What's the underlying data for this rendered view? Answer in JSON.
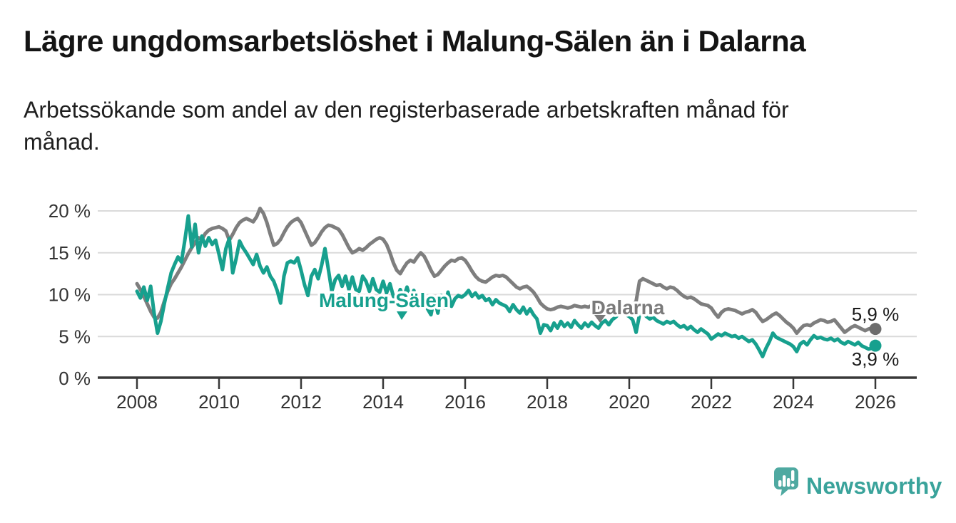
{
  "header": {
    "title": "Lägre ungdomsarbetslöshet i Malung-Sälen än i Dalarna",
    "subtitle_lines": [
      "Arbetssökande som andel av den registerbaserade arbetskraften månad för",
      "månad."
    ]
  },
  "chart_data": {
    "type": "line",
    "title": "Lägre ungdomsarbetslöshet i Malung-Sälen än i Dalarna",
    "subtitle": "Arbetssökande som andel av den registerbaserade arbetskraften månad för månad.",
    "x_unit": "month",
    "x_start": "2008-01",
    "x_end": "2026-01",
    "x_interval_months": 1,
    "x_tick_labels": [
      "2008",
      "2010",
      "2012",
      "2014",
      "2016",
      "2018",
      "2020",
      "2022",
      "2024",
      "2026"
    ],
    "y_ticks": [
      {
        "value": 0,
        "label": "0 %"
      },
      {
        "value": 5,
        "label": "5 %"
      },
      {
        "value": 10,
        "label": "10 %"
      },
      {
        "value": 15,
        "label": "15 %"
      },
      {
        "value": 20,
        "label": "20 %"
      }
    ],
    "ylim": [
      0,
      20.5
    ],
    "grid": true,
    "legend": "inline-labels",
    "colors": {
      "grid": "#dadada",
      "axis": "#383838",
      "tick_text": "#333333",
      "end_label_text": "#1a1a1a"
    },
    "series": [
      {
        "name": "Dalarna",
        "color": "#7e7e7e",
        "label_color": "#7a7a7a",
        "dot_color": "#6c6c6c",
        "end_label": "5,9 %",
        "end_value": 5.9,
        "values": [
          11.3,
          10.6,
          9.8,
          8.9,
          8.0,
          7.3,
          7.2,
          7.9,
          9.2,
          10.4,
          11.3,
          11.9,
          12.6,
          13.3,
          14.1,
          14.9,
          15.6,
          16.2,
          16.8,
          16.6,
          17.3,
          17.7,
          17.9,
          18.0,
          18.1,
          17.9,
          17.6,
          16.5,
          17.2,
          18.0,
          18.6,
          18.9,
          19.1,
          18.9,
          18.7,
          19.3,
          20.3,
          19.7,
          18.6,
          17.2,
          15.9,
          16.1,
          16.6,
          17.4,
          18.1,
          18.6,
          18.9,
          19.1,
          18.6,
          17.7,
          16.8,
          15.9,
          16.2,
          16.8,
          17.5,
          18.0,
          18.3,
          18.2,
          18.0,
          17.8,
          17.2,
          16.4,
          15.6,
          15.0,
          15.2,
          15.5,
          15.3,
          15.6,
          16.0,
          16.3,
          16.6,
          16.8,
          16.6,
          16.0,
          15.0,
          13.8,
          12.9,
          12.5,
          13.2,
          13.8,
          14.1,
          13.9,
          14.5,
          15.0,
          14.6,
          13.8,
          12.9,
          12.2,
          12.4,
          12.9,
          13.4,
          13.8,
          14.1,
          14.0,
          14.3,
          14.4,
          14.1,
          13.5,
          12.8,
          12.2,
          11.8,
          11.6,
          11.5,
          11.8,
          12.1,
          12.3,
          12.2,
          12.3,
          12.1,
          11.7,
          11.3,
          10.9,
          10.7,
          10.9,
          11.0,
          10.7,
          10.3,
          9.7,
          9.0,
          8.6,
          8.3,
          8.2,
          8.3,
          8.5,
          8.6,
          8.5,
          8.4,
          8.5,
          8.7,
          8.6,
          8.5,
          8.6,
          8.5,
          8.7,
          8.6,
          8.4,
          8.2,
          8.3,
          8.5,
          8.6,
          8.5,
          8.7,
          8.8,
          8.7,
          8.6,
          8.7,
          9.2,
          11.6,
          11.9,
          11.7,
          11.5,
          11.3,
          11.1,
          11.2,
          10.9,
          10.7,
          10.9,
          10.8,
          10.5,
          10.1,
          9.8,
          9.6,
          9.7,
          9.5,
          9.2,
          8.9,
          8.8,
          8.7,
          8.4,
          7.8,
          7.3,
          7.9,
          8.2,
          8.3,
          8.2,
          8.1,
          7.9,
          7.7,
          7.9,
          8.0,
          8.2,
          7.9,
          7.3,
          6.8,
          7.0,
          7.3,
          7.6,
          7.8,
          7.5,
          7.1,
          6.7,
          6.4,
          6.0,
          5.4,
          5.9,
          6.3,
          6.4,
          6.3,
          6.6,
          6.8,
          7.0,
          6.9,
          6.7,
          6.8,
          7.0,
          6.5,
          6.0,
          5.5,
          5.8,
          6.1,
          6.3,
          6.1,
          5.9,
          5.7,
          5.9,
          6.0,
          5.9
        ]
      },
      {
        "name": "Malung-Sälen",
        "color": "#17a08e",
        "label_color": "#17a08e",
        "dot_color": "#17a08e",
        "end_label": "3,9 %",
        "end_value": 3.9,
        "values": [
          10.4,
          9.6,
          10.9,
          9.3,
          11.0,
          7.8,
          5.4,
          6.8,
          8.9,
          10.8,
          12.6,
          13.6,
          14.5,
          13.9,
          16.5,
          19.4,
          15.7,
          18.4,
          15.0,
          17.0,
          15.8,
          16.8,
          16.0,
          16.5,
          14.8,
          13.0,
          15.5,
          16.7,
          12.6,
          14.3,
          16.4,
          15.6,
          15.0,
          14.3,
          13.6,
          14.8,
          13.4,
          12.6,
          13.3,
          12.2,
          11.6,
          10.5,
          9.0,
          12.2,
          13.8,
          14.0,
          13.8,
          14.4,
          12.9,
          11.2,
          9.9,
          12.2,
          13.0,
          11.9,
          13.5,
          15.5,
          13.0,
          10.4,
          11.8,
          12.3,
          11.0,
          12.2,
          10.6,
          12.1,
          10.6,
          10.4,
          12.2,
          11.6,
          10.4,
          11.9,
          10.6,
          10.3,
          11.6,
          10.2,
          11.3,
          9.8,
          9.4,
          10.6,
          9.7,
          10.9,
          9.5,
          10.5,
          9.3,
          8.9,
          9.7,
          8.3,
          7.6,
          9.7,
          7.8,
          9.9,
          8.4,
          10.3,
          8.6,
          9.5,
          9.9,
          9.7,
          10.0,
          10.5,
          9.8,
          10.2,
          9.6,
          9.9,
          9.3,
          9.5,
          8.8,
          9.4,
          9.0,
          8.8,
          8.6,
          8.0,
          8.8,
          8.2,
          7.8,
          8.5,
          7.7,
          8.3,
          7.6,
          7.1,
          5.4,
          6.4,
          6.3,
          5.7,
          6.6,
          6.0,
          6.8,
          6.2,
          6.6,
          6.1,
          6.9,
          6.4,
          6.0,
          6.6,
          6.2,
          6.7,
          6.3,
          6.0,
          6.6,
          6.9,
          6.4,
          7.0,
          7.3,
          7.7,
          7.9,
          7.6,
          7.4,
          7.0,
          5.5,
          7.6,
          7.8,
          7.4,
          7.1,
          7.3,
          6.9,
          6.7,
          6.5,
          6.8,
          6.6,
          6.8,
          6.4,
          6.1,
          6.3,
          5.9,
          6.2,
          5.8,
          5.5,
          5.9,
          5.6,
          5.3,
          4.7,
          5.0,
          5.3,
          5.1,
          5.4,
          5.2,
          5.0,
          5.1,
          4.8,
          5.0,
          4.7,
          4.4,
          4.6,
          4.1,
          3.4,
          2.6,
          3.6,
          4.4,
          5.4,
          4.9,
          4.7,
          4.5,
          4.3,
          4.1,
          3.8,
          3.2,
          4.1,
          4.4,
          4.0,
          4.6,
          5.1,
          4.8,
          4.9,
          4.7,
          4.6,
          4.8,
          4.5,
          4.7,
          4.3,
          4.1,
          4.4,
          4.2,
          4.0,
          4.3,
          3.9,
          3.7,
          3.5,
          3.6,
          3.9
        ]
      }
    ]
  },
  "branding": {
    "name": "Newsworthy",
    "text_color": "#3aa39b",
    "icon": "newsworthy-speech-bubble-bar-chart",
    "icon_color": "#4fa9a1"
  }
}
